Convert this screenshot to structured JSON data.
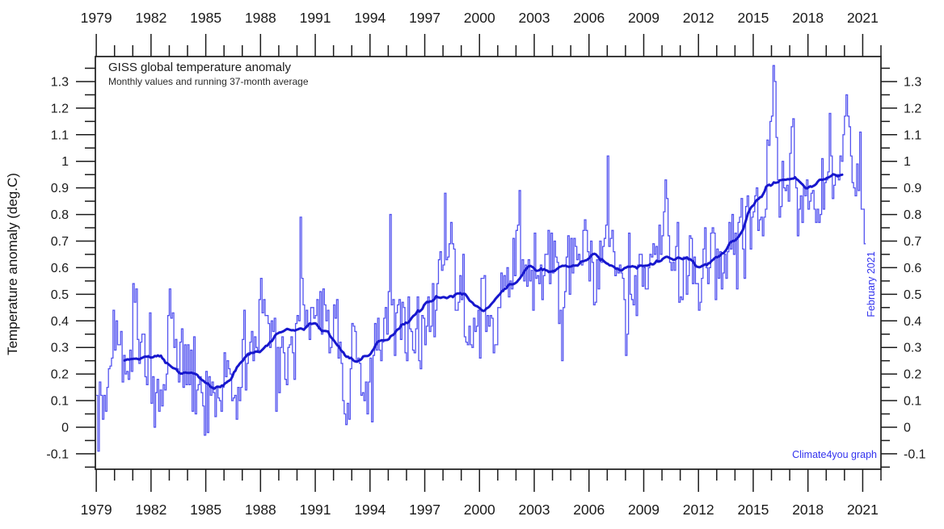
{
  "chart_data": {
    "type": "line",
    "title": "GISS global temperature anomaly",
    "subtitle": "Monthly values and running 37-month average",
    "ylabel": "Temperature anomaly (deg.C)",
    "annotations": {
      "latest_month": "February 2021",
      "watermark": "Climate4you graph"
    },
    "colors": {
      "monthly_line": "#5353ef",
      "average_line": "#1717cd",
      "annotation_blue": "#3333ee",
      "axis": "#1a1a1a"
    },
    "xlim": [
      1978.95,
      2022.0
    ],
    "ylim": [
      -0.158,
      1.394
    ],
    "x_major_tick_years": [
      1979,
      1982,
      1985,
      1988,
      1991,
      1994,
      1997,
      2000,
      2003,
      2006,
      2009,
      2012,
      2015,
      2018,
      2021
    ],
    "x_tick_labels": [
      "1979",
      "1982",
      "1985",
      "1988",
      "1991",
      "1994",
      "1997",
      "2000",
      "2003",
      "2006",
      "2009",
      "2012",
      "2015",
      "2018",
      "2021"
    ],
    "x_minor_tick_step_years": 1,
    "y_major_ticks": [
      -0.1,
      0,
      0.1,
      0.2,
      0.3,
      0.4,
      0.5,
      0.6,
      0.7,
      0.8,
      0.9,
      1,
      1.1,
      1.2,
      1.3
    ],
    "y_tick_labels": [
      "-0.1",
      "0",
      "0.1",
      "0.2",
      "0.3",
      "0.4",
      "0.5",
      "0.6",
      "0.7",
      "0.8",
      "0.9",
      "1",
      "1.1",
      "1.2",
      "1.3"
    ],
    "y_minor_tick_step": 0.05,
    "grid": false,
    "legend": "none",
    "series": [
      {
        "name": "Monthly values",
        "style": "step",
        "color": "#5353ef",
        "line_width": 1.3,
        "start_year": 1979,
        "start_month": 1,
        "end_label": "February 2021",
        "monthly_values": [
          0.12,
          -0.09,
          0.17,
          0.12,
          0.03,
          0.12,
          0.06,
          0.15,
          0.22,
          0.23,
          0.26,
          0.44,
          0.29,
          0.4,
          0.31,
          0.31,
          0.36,
          0.17,
          0.27,
          0.2,
          0.21,
          0.18,
          0.29,
          0.21,
          0.54,
          0.47,
          0.52,
          0.33,
          0.24,
          0.32,
          0.35,
          0.35,
          0.19,
          0.16,
          0.27,
          0.43,
          0.09,
          0.19,
          0.0,
          0.13,
          0.18,
          0.06,
          0.14,
          0.08,
          0.16,
          0.14,
          0.2,
          0.42,
          0.52,
          0.41,
          0.43,
          0.3,
          0.33,
          0.22,
          0.17,
          0.32,
          0.37,
          0.15,
          0.31,
          0.16,
          0.31,
          0.16,
          0.29,
          0.06,
          0.34,
          0.05,
          0.14,
          0.16,
          0.19,
          0.13,
          0.08,
          -0.03,
          0.21,
          -0.02,
          0.19,
          0.12,
          0.17,
          0.13,
          0.04,
          0.15,
          0.11,
          0.1,
          0.06,
          0.15,
          0.28,
          0.19,
          0.25,
          0.22,
          0.2,
          0.1,
          0.11,
          0.12,
          0.03,
          0.15,
          0.1,
          0.15,
          0.33,
          0.44,
          0.14,
          0.24,
          0.28,
          0.32,
          0.36,
          0.25,
          0.34,
          0.3,
          0.29,
          0.48,
          0.56,
          0.43,
          0.48,
          0.42,
          0.42,
          0.39,
          0.3,
          0.4,
          0.36,
          0.41,
          0.06,
          0.3,
          0.13,
          0.3,
          0.34,
          0.28,
          0.18,
          0.16,
          0.3,
          0.31,
          0.34,
          0.28,
          0.18,
          0.39,
          0.42,
          0.4,
          0.79,
          0.56,
          0.46,
          0.38,
          0.44,
          0.39,
          0.33,
          0.45,
          0.45,
          0.41,
          0.42,
          0.48,
          0.37,
          0.51,
          0.35,
          0.52,
          0.46,
          0.4,
          0.44,
          0.28,
          0.3,
          0.33,
          0.46,
          0.41,
          0.48,
          0.26,
          0.32,
          0.24,
          0.1,
          0.05,
          0.01,
          0.09,
          0.03,
          0.22,
          0.39,
          0.38,
          0.36,
          0.25,
          0.26,
          0.24,
          0.12,
          0.13,
          0.1,
          0.17,
          0.05,
          0.17,
          0.26,
          0.02,
          0.27,
          0.39,
          0.29,
          0.41,
          0.29,
          0.25,
          0.32,
          0.41,
          0.45,
          0.35,
          0.51,
          0.8,
          0.46,
          0.48,
          0.27,
          0.43,
          0.46,
          0.48,
          0.33,
          0.47,
          0.45,
          0.28,
          0.25,
          0.49,
          0.37,
          0.36,
          0.29,
          0.28,
          0.37,
          0.49,
          0.25,
          0.22,
          0.42,
          0.41,
          0.31,
          0.38,
          0.49,
          0.36,
          0.38,
          0.54,
          0.34,
          0.44,
          0.54,
          0.63,
          0.66,
          0.59,
          0.61,
          0.88,
          0.63,
          0.64,
          0.69,
          0.77,
          0.69,
          0.67,
          0.44,
          0.44,
          0.47,
          0.57,
          0.48,
          0.65,
          0.34,
          0.32,
          0.31,
          0.38,
          0.31,
          0.3,
          0.41,
          0.36,
          0.38,
          0.44,
          0.26,
          0.56,
          0.56,
          0.57,
          0.36,
          0.42,
          0.38,
          0.42,
          0.41,
          0.28,
          0.31,
          0.31,
          0.45,
          0.45,
          0.58,
          0.51,
          0.57,
          0.53,
          0.6,
          0.49,
          0.55,
          0.52,
          0.71,
          0.57,
          0.74,
          0.76,
          0.89,
          0.57,
          0.63,
          0.55,
          0.61,
          0.53,
          0.63,
          0.55,
          0.59,
          0.44,
          0.73,
          0.56,
          0.57,
          0.54,
          0.61,
          0.48,
          0.57,
          0.65,
          0.65,
          0.74,
          0.54,
          0.73,
          0.58,
          0.7,
          0.64,
          0.62,
          0.39,
          0.44,
          0.25,
          0.45,
          0.51,
          0.64,
          0.72,
          0.5,
          0.71,
          0.58,
          0.71,
          0.68,
          0.63,
          0.65,
          0.62,
          0.61,
          0.74,
          0.78,
          0.74,
          0.66,
          0.55,
          0.7,
          0.62,
          0.46,
          0.47,
          0.63,
          0.52,
          0.7,
          0.62,
          0.68,
          0.71,
          0.76,
          1.02,
          0.68,
          0.71,
          0.74,
          0.66,
          0.57,
          0.6,
          0.58,
          0.61,
          0.58,
          0.56,
          0.48,
          0.27,
          0.35,
          0.73,
          0.5,
          0.48,
          0.46,
          0.57,
          0.42,
          0.61,
          0.65,
          0.65,
          0.53,
          0.6,
          0.52,
          0.52,
          0.6,
          0.65,
          0.64,
          0.69,
          0.65,
          0.68,
          0.62,
          0.76,
          0.65,
          0.72,
          0.81,
          0.93,
          0.86,
          0.72,
          0.62,
          0.59,
          0.62,
          0.59,
          0.68,
          0.77,
          0.47,
          0.49,
          0.48,
          0.64,
          0.64,
          0.5,
          0.57,
          0.72,
          0.71,
          0.54,
          0.64,
          0.54,
          0.54,
          0.44,
          0.47,
          0.56,
          0.67,
          0.75,
          0.6,
          0.54,
          0.6,
          0.73,
          0.75,
          0.73,
          0.48,
          0.67,
          0.56,
          0.66,
          0.52,
          0.58,
          0.65,
          0.56,
          0.66,
          0.77,
          0.67,
          0.8,
          0.65,
          0.73,
          0.52,
          0.77,
          0.79,
          0.86,
          0.67,
          0.56,
          0.83,
          0.87,
          0.81,
          0.67,
          0.79,
          0.81,
          0.87,
          0.9,
          0.74,
          0.78,
          0.79,
          0.72,
          0.79,
          0.82,
          1.08,
          1.06,
          1.15,
          1.17,
          1.36,
          1.3,
          1.09,
          0.93,
          0.79,
          0.83,
          1.0,
          0.9,
          0.89,
          0.91,
          0.85,
          1.03,
          1.13,
          1.16,
          0.94,
          0.9,
          0.72,
          0.82,
          0.87,
          0.77,
          0.9,
          0.87,
          0.93,
          0.82,
          0.85,
          0.88,
          0.89,
          0.82,
          0.77,
          0.82,
          0.77,
          0.8,
          1.01,
          0.82,
          0.92,
          0.93,
          0.96,
          1.18,
          1.02,
          0.86,
          0.91,
          0.95,
          0.95,
          0.93,
          1.02,
          1.0,
          1.1,
          1.17,
          1.25,
          1.17,
          1.13,
          1.02,
          0.92,
          0.9,
          0.87,
          0.99,
          0.89,
          1.11,
          0.82,
          0.82,
          0.69
        ]
      },
      {
        "name": "Running 37-month average",
        "style": "line",
        "color": "#1717cd",
        "line_width": 3,
        "derived_from": "monthly_values",
        "window_months": 37
      }
    ]
  }
}
